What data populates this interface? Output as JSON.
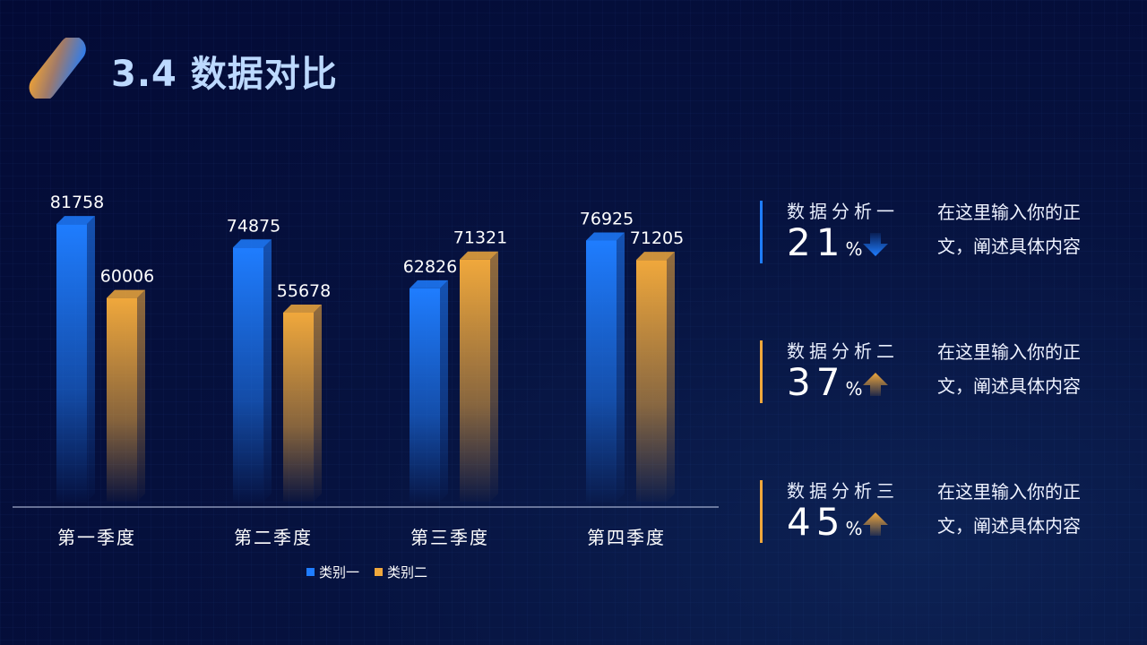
{
  "header": {
    "title": "3.4 数据对比"
  },
  "chart_data": {
    "type": "bar",
    "categories": [
      "第一季度",
      "第二季度",
      "第三季度",
      "第四季度"
    ],
    "series": [
      {
        "name": "类别一",
        "values": [
          81758,
          74875,
          62826,
          76925
        ],
        "color": "#1f7dff"
      },
      {
        "name": "类别二",
        "values": [
          60006,
          55678,
          71321,
          71205
        ],
        "color": "#f0a83c"
      }
    ],
    "title": "",
    "xlabel": "",
    "ylabel": "",
    "ylim": [
      0,
      95000
    ],
    "legend": "bottom",
    "grid": false
  },
  "panels": [
    {
      "label": "数据分析一",
      "value": "21",
      "unit": "%",
      "trend": "down",
      "color": "#1f7dff",
      "desc": "在这里输入你的正文，阐述具体内容"
    },
    {
      "label": "数据分析二",
      "value": "37",
      "unit": "%",
      "trend": "up",
      "color": "#f0a83c",
      "desc": "在这里输入你的正文，阐述具体内容"
    },
    {
      "label": "数据分析三",
      "value": "45",
      "unit": "%",
      "trend": "up",
      "color": "#f0a83c",
      "desc": "在这里输入你的正文，阐述具体内容"
    }
  ]
}
